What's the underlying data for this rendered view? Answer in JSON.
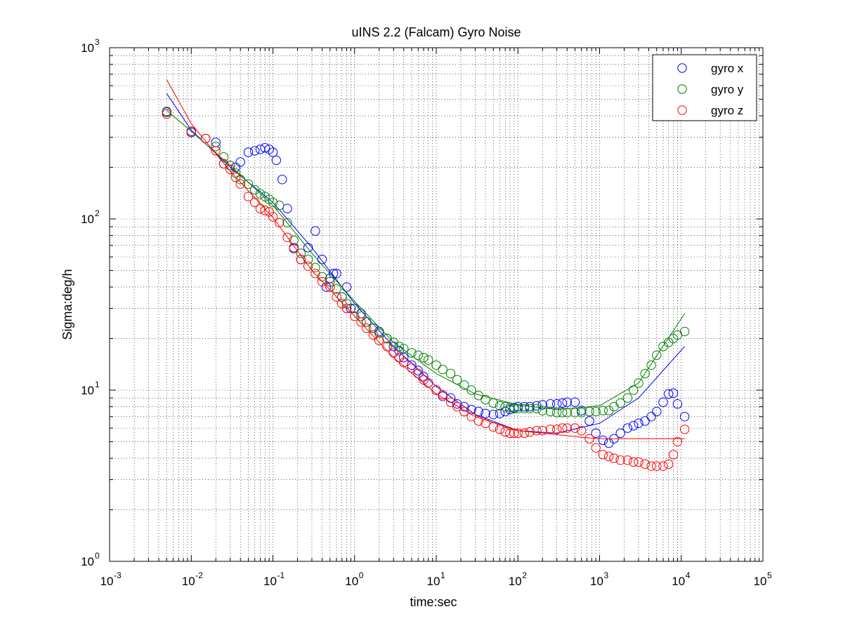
{
  "chart_data": {
    "type": "scatter",
    "title": "uINS 2.2 (Falcam) Gyro Noise",
    "xlabel": "time:sec",
    "ylabel": "Sigma:deg/h",
    "xscale": "log",
    "yscale": "log",
    "xlim": [
      0.001,
      100000
    ],
    "ylim": [
      1,
      1000
    ],
    "x_ticks": [
      {
        "base": "10",
        "exp": "-3",
        "value": 0.001
      },
      {
        "base": "10",
        "exp": "-2",
        "value": 0.01
      },
      {
        "base": "10",
        "exp": "-1",
        "value": 0.1
      },
      {
        "base": "10",
        "exp": "0",
        "value": 1
      },
      {
        "base": "10",
        "exp": "1",
        "value": 10
      },
      {
        "base": "10",
        "exp": "2",
        "value": 100
      },
      {
        "base": "10",
        "exp": "3",
        "value": 1000
      },
      {
        "base": "10",
        "exp": "4",
        "value": 10000
      },
      {
        "base": "10",
        "exp": "5",
        "value": 100000
      }
    ],
    "y_ticks": [
      {
        "base": "10",
        "exp": "0",
        "value": 1
      },
      {
        "base": "10",
        "exp": "1",
        "value": 10
      },
      {
        "base": "10",
        "exp": "2",
        "value": 100
      },
      {
        "base": "10",
        "exp": "3",
        "value": 1000
      }
    ],
    "grid": true,
    "legend_position": "top-right",
    "series": [
      {
        "name": "gyro x",
        "color": "#0000ff",
        "marker": "circle",
        "points": [
          [
            0.005,
            420
          ],
          [
            0.01,
            320
          ],
          [
            0.02,
            280
          ],
          [
            0.025,
            210
          ],
          [
            0.03,
            205
          ],
          [
            0.035,
            200
          ],
          [
            0.04,
            215
          ],
          [
            0.05,
            245
          ],
          [
            0.06,
            250
          ],
          [
            0.07,
            255
          ],
          [
            0.08,
            260
          ],
          [
            0.09,
            255
          ],
          [
            0.1,
            245
          ],
          [
            0.11,
            220
          ],
          [
            0.13,
            170
          ],
          [
            0.15,
            115
          ],
          [
            0.18,
            68
          ],
          [
            0.22,
            58
          ],
          [
            0.27,
            68
          ],
          [
            0.33,
            85
          ],
          [
            0.4,
            58
          ],
          [
            0.45,
            40
          ],
          [
            0.5,
            45
          ],
          [
            0.55,
            48
          ],
          [
            0.6,
            48
          ],
          [
            0.7,
            35
          ],
          [
            0.8,
            40
          ],
          [
            0.9,
            30
          ],
          [
            1.0,
            30
          ],
          [
            1.2,
            28
          ],
          [
            1.4,
            25
          ],
          [
            1.7,
            23
          ],
          [
            2,
            22
          ],
          [
            2.5,
            20
          ],
          [
            3,
            18
          ],
          [
            3.5,
            17
          ],
          [
            4,
            15.5
          ],
          [
            5,
            14
          ],
          [
            6,
            13
          ],
          [
            7,
            12
          ],
          [
            8,
            11
          ],
          [
            10,
            10
          ],
          [
            12,
            9.2
          ],
          [
            15,
            9
          ],
          [
            18,
            8.3
          ],
          [
            22,
            8
          ],
          [
            27,
            7.7
          ],
          [
            33,
            7.5
          ],
          [
            40,
            7.3
          ],
          [
            50,
            7.2
          ],
          [
            60,
            7.3
          ],
          [
            70,
            7.5
          ],
          [
            80,
            7.7
          ],
          [
            90,
            7.9
          ],
          [
            100,
            8
          ],
          [
            120,
            8
          ],
          [
            140,
            8
          ],
          [
            170,
            8.1
          ],
          [
            200,
            8.2
          ],
          [
            250,
            8.3
          ],
          [
            300,
            8.3
          ],
          [
            350,
            8.4
          ],
          [
            400,
            8.5
          ],
          [
            500,
            8.5
          ],
          [
            600,
            7.6
          ],
          [
            750,
            6.6
          ],
          [
            900,
            5.6
          ],
          [
            1100,
            5.1
          ],
          [
            1300,
            4.9
          ],
          [
            1500,
            5.2
          ],
          [
            1800,
            5.6
          ],
          [
            2200,
            6
          ],
          [
            2600,
            6.2
          ],
          [
            3000,
            6.4
          ],
          [
            3600,
            6.6
          ],
          [
            4300,
            7
          ],
          [
            5000,
            7.5
          ],
          [
            6000,
            8.5
          ],
          [
            7000,
            9.5
          ],
          [
            8000,
            9.6
          ],
          [
            9000,
            8.3
          ],
          [
            11000,
            7
          ]
        ],
        "fit": [
          [
            0.005,
            540
          ],
          [
            0.01,
            330
          ],
          [
            0.03,
            200
          ],
          [
            0.1,
            125
          ],
          [
            0.3,
            68
          ],
          [
            1,
            32
          ],
          [
            3,
            18
          ],
          [
            10,
            10.5
          ],
          [
            30,
            7.2
          ],
          [
            100,
            5.8
          ],
          [
            300,
            5.6
          ],
          [
            1000,
            6.4
          ],
          [
            3000,
            9
          ],
          [
            11000,
            18
          ]
        ]
      },
      {
        "name": "gyro y",
        "color": "#008000",
        "marker": "circle",
        "points": [
          [
            0.005,
            425
          ],
          [
            0.01,
            325
          ],
          [
            0.015,
            295
          ],
          [
            0.02,
            265
          ],
          [
            0.025,
            230
          ],
          [
            0.03,
            205
          ],
          [
            0.035,
            185
          ],
          [
            0.04,
            170
          ],
          [
            0.05,
            160
          ],
          [
            0.06,
            148
          ],
          [
            0.07,
            140
          ],
          [
            0.08,
            135
          ],
          [
            0.09,
            130
          ],
          [
            0.1,
            125
          ],
          [
            0.12,
            120
          ],
          [
            0.15,
            95
          ],
          [
            0.18,
            75
          ],
          [
            0.22,
            63
          ],
          [
            0.27,
            58
          ],
          [
            0.33,
            52
          ],
          [
            0.4,
            46
          ],
          [
            0.5,
            43
          ],
          [
            0.6,
            39
          ],
          [
            0.7,
            35
          ],
          [
            0.8,
            32
          ],
          [
            1,
            30
          ],
          [
            1.2,
            27
          ],
          [
            1.4,
            25
          ],
          [
            1.7,
            23
          ],
          [
            2,
            21.5
          ],
          [
            2.5,
            20
          ],
          [
            3,
            19
          ],
          [
            3.5,
            18
          ],
          [
            4,
            17.5
          ],
          [
            5,
            16.5
          ],
          [
            6,
            16
          ],
          [
            7,
            15.5
          ],
          [
            8,
            15
          ],
          [
            10,
            14
          ],
          [
            12,
            13.2
          ],
          [
            15,
            12.5
          ],
          [
            18,
            11.5
          ],
          [
            22,
            10.7
          ],
          [
            27,
            10
          ],
          [
            33,
            9.3
          ],
          [
            40,
            8.8
          ],
          [
            50,
            8.4
          ],
          [
            60,
            8.1
          ],
          [
            70,
            8
          ],
          [
            80,
            7.9
          ],
          [
            90,
            7.8
          ],
          [
            100,
            7.8
          ],
          [
            120,
            7.8
          ],
          [
            140,
            7.8
          ],
          [
            170,
            7.8
          ],
          [
            200,
            7.6
          ],
          [
            250,
            7.5
          ],
          [
            300,
            7.4
          ],
          [
            350,
            7.4
          ],
          [
            400,
            7.4
          ],
          [
            500,
            7.4
          ],
          [
            600,
            7.4
          ],
          [
            750,
            7.5
          ],
          [
            900,
            7.5
          ],
          [
            1100,
            7.6
          ],
          [
            1300,
            7.6
          ],
          [
            1500,
            8
          ],
          [
            1800,
            8.4
          ],
          [
            2200,
            9
          ],
          [
            2600,
            10
          ],
          [
            3000,
            11
          ],
          [
            3600,
            12.5
          ],
          [
            4300,
            14
          ],
          [
            5000,
            16
          ],
          [
            6000,
            18
          ],
          [
            7000,
            19
          ],
          [
            8000,
            20
          ],
          [
            9000,
            21
          ],
          [
            11000,
            22
          ]
        ],
        "fit": [
          [
            0.005,
            430
          ],
          [
            0.01,
            325
          ],
          [
            0.03,
            205
          ],
          [
            0.1,
            120
          ],
          [
            0.3,
            63
          ],
          [
            1,
            33
          ],
          [
            3,
            19
          ],
          [
            10,
            12.5
          ],
          [
            30,
            9.5
          ],
          [
            100,
            8.2
          ],
          [
            300,
            7.7
          ],
          [
            1000,
            8.1
          ],
          [
            3000,
            11
          ],
          [
            11000,
            28
          ]
        ]
      },
      {
        "name": "gyro z",
        "color": "#ff0000",
        "marker": "circle",
        "points": [
          [
            0.005,
            410
          ],
          [
            0.01,
            325
          ],
          [
            0.015,
            295
          ],
          [
            0.02,
            250
          ],
          [
            0.025,
            210
          ],
          [
            0.03,
            195
          ],
          [
            0.035,
            175
          ],
          [
            0.04,
            160
          ],
          [
            0.05,
            135
          ],
          [
            0.06,
            125
          ],
          [
            0.07,
            115
          ],
          [
            0.08,
            112
          ],
          [
            0.09,
            110
          ],
          [
            0.1,
            103
          ],
          [
            0.12,
            95
          ],
          [
            0.15,
            78
          ],
          [
            0.18,
            67
          ],
          [
            0.22,
            58
          ],
          [
            0.27,
            53
          ],
          [
            0.33,
            48
          ],
          [
            0.4,
            43
          ],
          [
            0.5,
            40
          ],
          [
            0.6,
            35
          ],
          [
            0.7,
            32
          ],
          [
            0.8,
            30
          ],
          [
            1,
            27
          ],
          [
            1.2,
            25
          ],
          [
            1.4,
            23
          ],
          [
            1.7,
            21
          ],
          [
            2,
            19.5
          ],
          [
            2.5,
            18
          ],
          [
            3,
            16.5
          ],
          [
            3.5,
            15.5
          ],
          [
            4,
            14.5
          ],
          [
            5,
            13.5
          ],
          [
            6,
            12.5
          ],
          [
            7,
            11.5
          ],
          [
            8,
            11
          ],
          [
            10,
            10
          ],
          [
            12,
            9.4
          ],
          [
            15,
            8.5
          ],
          [
            18,
            8
          ],
          [
            22,
            7.5
          ],
          [
            27,
            7
          ],
          [
            33,
            6.6
          ],
          [
            40,
            6.4
          ],
          [
            50,
            6.1
          ],
          [
            60,
            5.9
          ],
          [
            70,
            5.7
          ],
          [
            80,
            5.6
          ],
          [
            90,
            5.6
          ],
          [
            100,
            5.6
          ],
          [
            120,
            5.6
          ],
          [
            140,
            5.7
          ],
          [
            170,
            5.8
          ],
          [
            200,
            5.8
          ],
          [
            250,
            5.9
          ],
          [
            300,
            5.9
          ],
          [
            350,
            6
          ],
          [
            400,
            6
          ],
          [
            500,
            6
          ],
          [
            600,
            5.8
          ],
          [
            750,
            5.2
          ],
          [
            900,
            4.6
          ],
          [
            1100,
            4.2
          ],
          [
            1300,
            4.1
          ],
          [
            1500,
            4
          ],
          [
            1800,
            3.9
          ],
          [
            2200,
            3.9
          ],
          [
            2600,
            3.8
          ],
          [
            3000,
            3.8
          ],
          [
            3600,
            3.7
          ],
          [
            4300,
            3.6
          ],
          [
            5000,
            3.6
          ],
          [
            6000,
            3.6
          ],
          [
            7000,
            3.7
          ],
          [
            8000,
            4.2
          ],
          [
            9000,
            5
          ],
          [
            11000,
            5.9
          ]
        ],
        "fit": [
          [
            0.005,
            650
          ],
          [
            0.01,
            360
          ],
          [
            0.03,
            190
          ],
          [
            0.1,
            102
          ],
          [
            0.3,
            50
          ],
          [
            1,
            27
          ],
          [
            3,
            15.5
          ],
          [
            10,
            9.5
          ],
          [
            30,
            7
          ],
          [
            100,
            5.8
          ],
          [
            300,
            5.5
          ],
          [
            600,
            5.3
          ],
          [
            1000,
            5.2
          ],
          [
            11000,
            5.2
          ]
        ]
      }
    ]
  }
}
